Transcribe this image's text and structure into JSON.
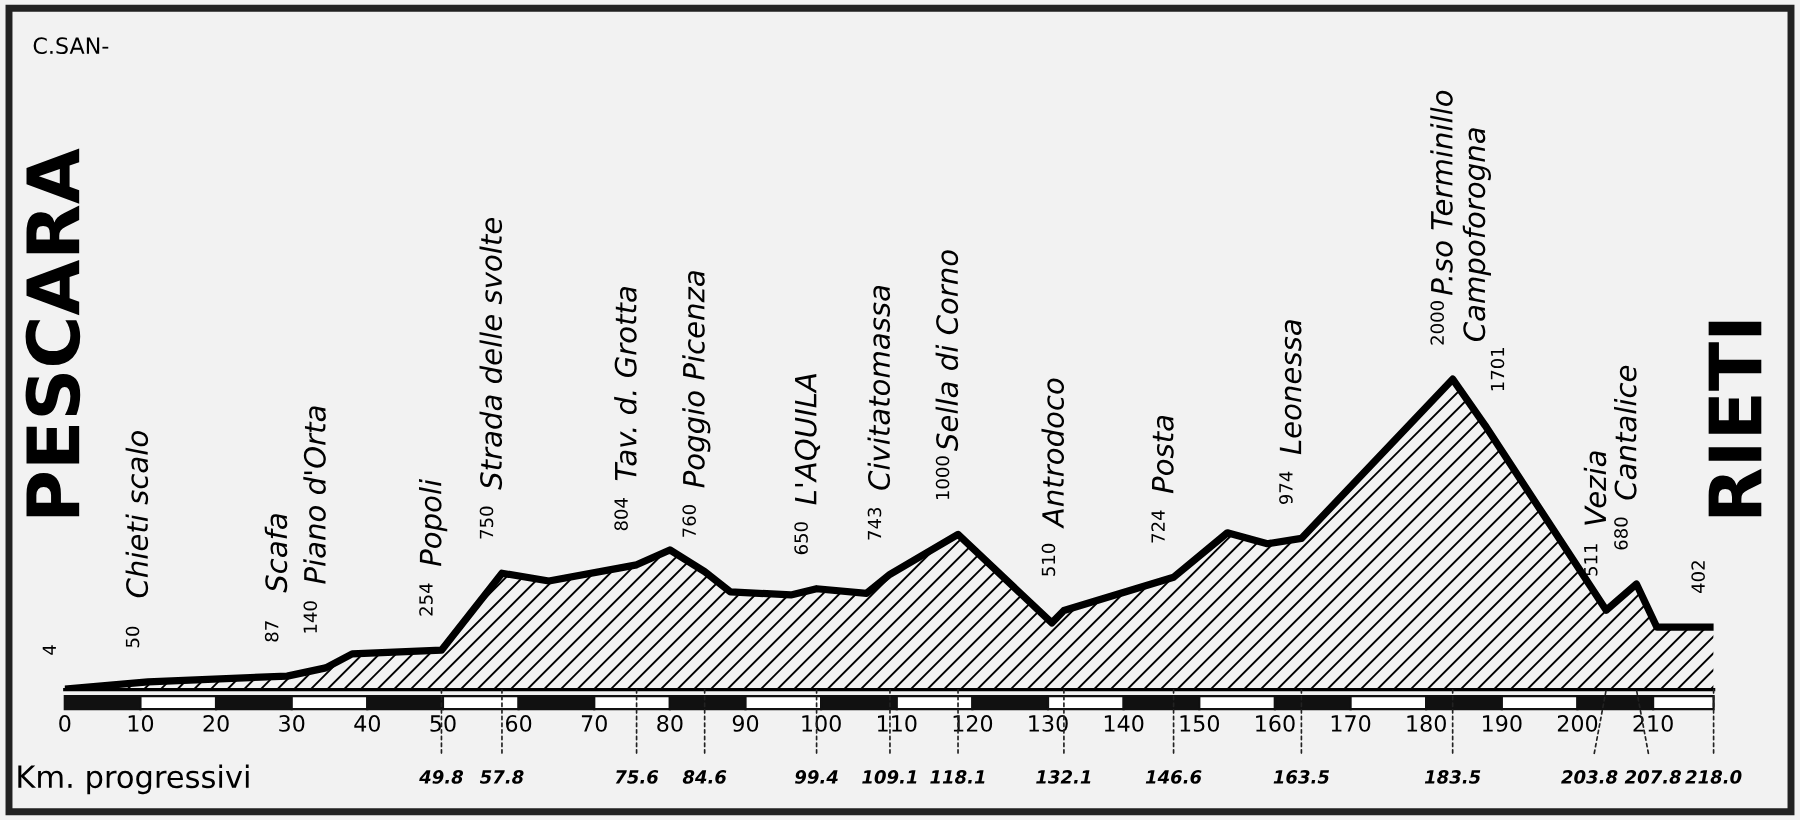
{
  "chart_data": {
    "type": "area",
    "xlabel": "Km. progressivi",
    "x": [
      0,
      11,
      29.4,
      34.5,
      38,
      49.8,
      57.8,
      64,
      75.6,
      80,
      84.6,
      88,
      96,
      99.4,
      106,
      109.1,
      118.1,
      130.5,
      132.1,
      146.6,
      153.7,
      159,
      163.5,
      183.5,
      187.8,
      203.8,
      207.8,
      210.5,
      218
    ],
    "series": [
      {
        "color": "#000000",
        "values": [
          4,
          50,
          87,
          140,
          230,
          254,
          750,
          700,
          804,
          900,
          760,
          630,
          610,
          650,
          620,
          743,
          1000,
          430,
          510,
          724,
          1010,
          940,
          974,
          2000,
          1701,
          511,
          680,
          402,
          402
        ],
        "value_labels": [
          "4",
          "50",
          "87",
          "140",
          null,
          "254",
          "750",
          null,
          "804",
          null,
          "760",
          null,
          null,
          "650",
          null,
          "743",
          "1000",
          null,
          "510",
          "724",
          null,
          null,
          "974",
          "2000",
          "1701",
          "511",
          "680",
          null,
          "402"
        ]
      }
    ],
    "xlim": [
      0,
      218
    ],
    "xticks": [
      0,
      10,
      20,
      30,
      40,
      50,
      60,
      70,
      80,
      90,
      100,
      110,
      120,
      130,
      140,
      150,
      160,
      170,
      180,
      190,
      200,
      210
    ],
    "tick_labels": "x",
    "grid": false,
    "annotations": [
      "C.SAN-",
      "PESCARA",
      "RIETI",
      {
        "text": "Chieti scalo",
        "x": 11,
        "y": 50
      },
      {
        "text": "Scafa",
        "x": 29.4,
        "y": 87
      },
      {
        "text": "Piano d'Orta",
        "x": 34.5,
        "y": 140
      },
      {
        "text": "Popoli",
        "x": 49.8,
        "y": 254
      },
      {
        "text": "Strada delle svolte",
        "x": 57.8,
        "y": 750
      },
      {
        "text": "Tav. d. Grotta",
        "x": 75.6,
        "y": 804
      },
      {
        "text": "Poggio Picenza",
        "x": 84.6,
        "y": 760
      },
      {
        "text": "L'AQUILA",
        "x": 99.4,
        "y": 650
      },
      {
        "text": "Civitatomassa",
        "x": 109.1,
        "y": 743
      },
      {
        "text": "Sella di Corno",
        "x": 118.1,
        "y": 1000
      },
      {
        "text": "Antrodoco",
        "x": 132.1,
        "y": 510
      },
      {
        "text": "Posta",
        "x": 146.6,
        "y": 724
      },
      {
        "text": "Leonessa",
        "x": 163.5,
        "y": 974
      },
      {
        "text": "P.so Terminillo",
        "x": 183.5,
        "y": 2000
      },
      {
        "text": "Campoforogna",
        "x": 187.8,
        "y": 1701
      },
      {
        "text": "Vezia",
        "x": 203.8,
        "y": 511
      },
      {
        "text": "Cantalice",
        "x": 207.8,
        "y": 680
      },
      {
        "text": "49.8",
        "x": 49.8,
        "y": 0
      },
      {
        "text": "57.8",
        "x": 57.8,
        "y": 0
      },
      {
        "text": "75.6",
        "x": 75.6,
        "y": 0
      },
      {
        "text": "84.6",
        "x": 84.6,
        "y": 0
      },
      {
        "text": "99.4",
        "x": 99.4,
        "y": 0
      },
      {
        "text": "109.1",
        "x": 109.1,
        "y": 0
      },
      {
        "text": "118.1",
        "x": 118.1,
        "y": 0
      },
      {
        "text": "132.1",
        "x": 132.1,
        "y": 0
      },
      {
        "text": "146.6",
        "x": 146.6,
        "y": 0
      },
      {
        "text": "163.5",
        "x": 163.5,
        "y": 0
      },
      {
        "text": "183.5",
        "x": 183.5,
        "y": 0
      },
      {
        "text": "203.8",
        "x": 203.8,
        "y": 0
      },
      {
        "text": "207.8",
        "x": 207.8,
        "y": 0
      },
      {
        "text": "218.0",
        "x": 218.0,
        "y": 0
      }
    ]
  }
}
